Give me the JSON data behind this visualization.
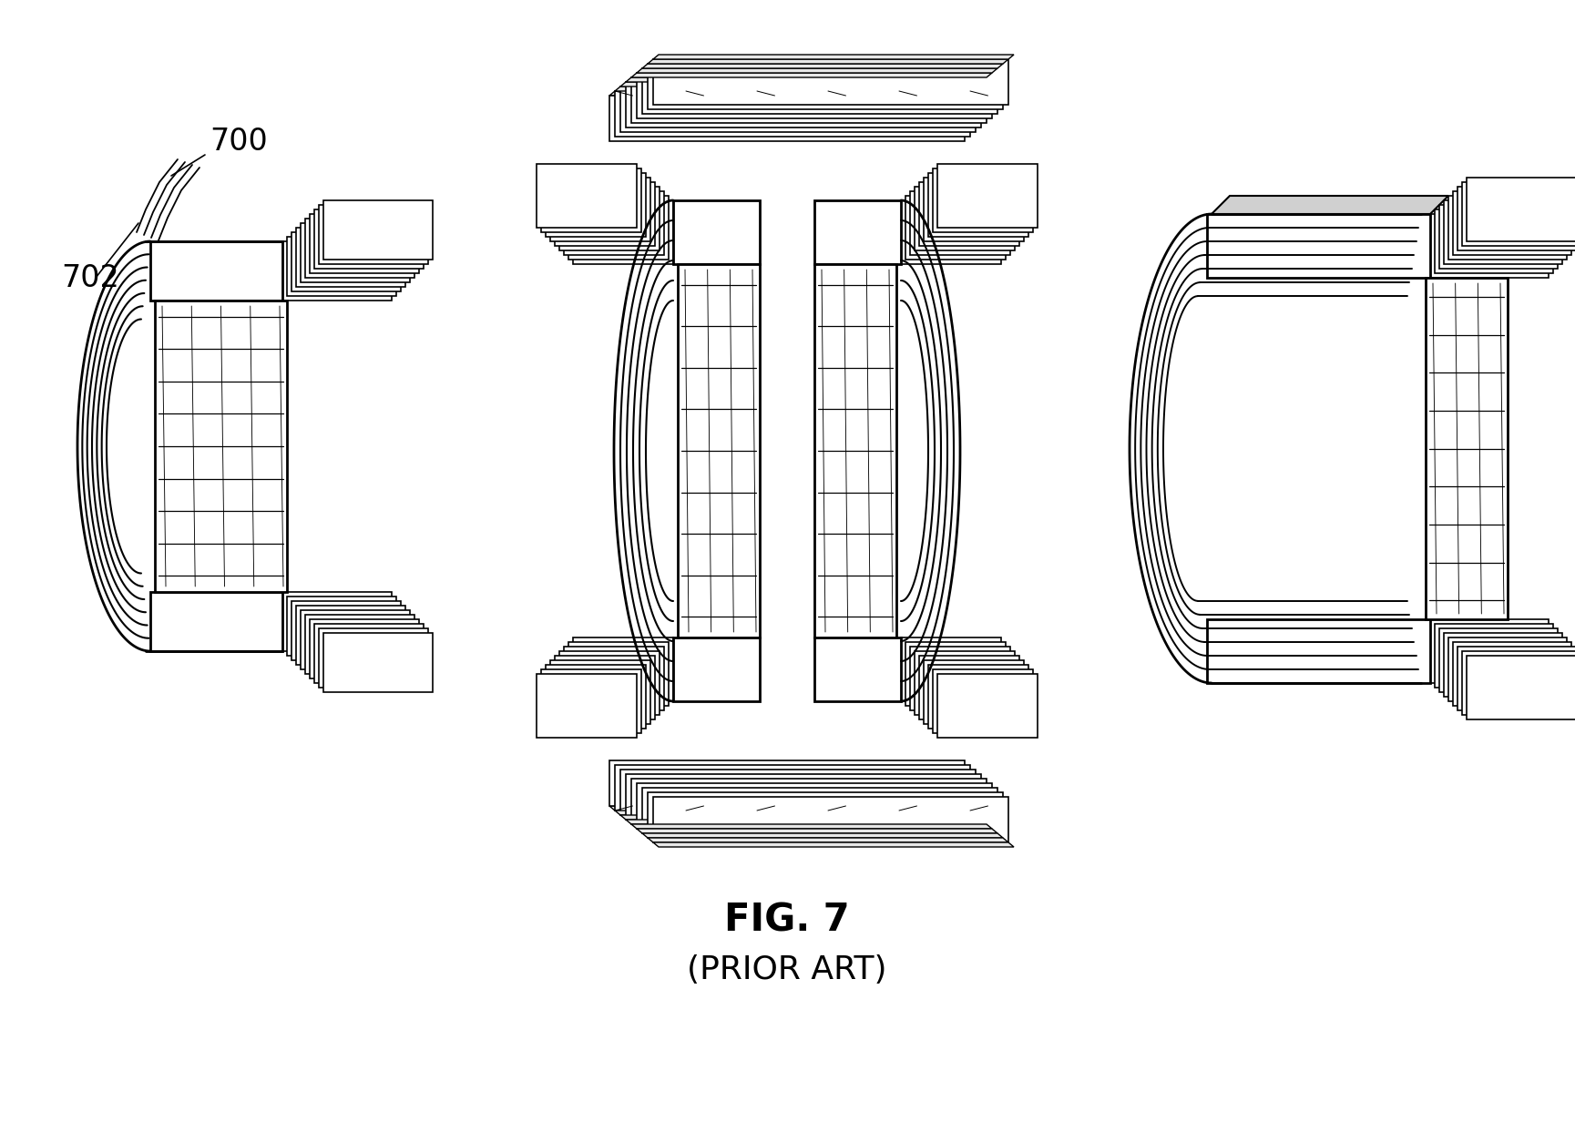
{
  "title": "FIG. 7",
  "subtitle": "(PRIOR ART)",
  "title_fontsize": 30,
  "subtitle_fontsize": 26,
  "background_color": "#ffffff",
  "line_color": "#000000",
  "label_700": "700",
  "label_702": "702",
  "fig_width": 17.29,
  "fig_height": 12.43,
  "dpi": 100
}
